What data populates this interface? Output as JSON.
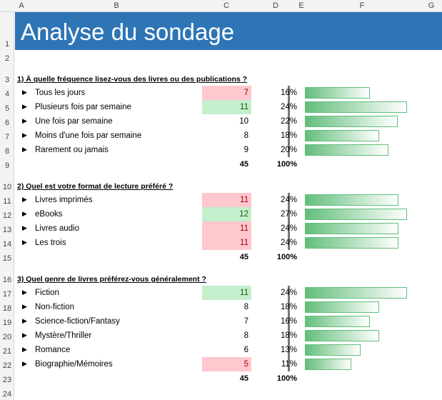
{
  "columns": [
    "A",
    "B",
    "C",
    "D",
    "E",
    "F",
    "G"
  ],
  "title": "Analyse du sondage",
  "colors": {
    "title_bg": "#2e75b6",
    "low_bg": "#ffc7ce",
    "high_bg": "#c6efce",
    "bar": "#63be7b"
  },
  "sections": [
    {
      "question": "1) À quelle fréquence lisez-vous des livres ou des publications ?",
      "items": [
        {
          "label": "Tous les jours",
          "count": "7",
          "pct": "16%",
          "value": 7,
          "hl": "low"
        },
        {
          "label": "Plusieurs fois par semaine",
          "count": "11",
          "pct": "24%",
          "value": 11,
          "hl": "high"
        },
        {
          "label": "Une fois par semaine",
          "count": "10",
          "pct": "22%",
          "value": 10,
          "hl": ""
        },
        {
          "label": "Moins d'une fois par semaine",
          "count": "8",
          "pct": "18%",
          "value": 8,
          "hl": ""
        },
        {
          "label": "Rarement ou jamais",
          "count": "9",
          "pct": "20%",
          "value": 9,
          "hl": ""
        }
      ],
      "total": "45",
      "total_pct": "100%"
    },
    {
      "question": "2) Quel est votre format de lecture préféré ?",
      "items": [
        {
          "label": "Livres imprimés",
          "count": "11",
          "pct": "24%",
          "value": 11,
          "hl": "low"
        },
        {
          "label": "eBooks",
          "count": "12",
          "pct": "27%",
          "value": 12,
          "hl": "high"
        },
        {
          "label": "Livres audio",
          "count": "11",
          "pct": "24%",
          "value": 11,
          "hl": "low"
        },
        {
          "label": "Les trois",
          "count": "11",
          "pct": "24%",
          "value": 11,
          "hl": "low"
        }
      ],
      "total": "45",
      "total_pct": "100%"
    },
    {
      "question": "3) Quel genre de livres préférez-vous généralement ?",
      "items": [
        {
          "label": "Fiction",
          "count": "11",
          "pct": "24%",
          "value": 11,
          "hl": "high"
        },
        {
          "label": "Non-fiction",
          "count": "8",
          "pct": "18%",
          "value": 8,
          "hl": ""
        },
        {
          "label": "Science-fiction/Fantasy",
          "count": "7",
          "pct": "16%",
          "value": 7,
          "hl": ""
        },
        {
          "label": "Mystère/Thriller",
          "count": "8",
          "pct": "18%",
          "value": 8,
          "hl": ""
        },
        {
          "label": "Romance",
          "count": "6",
          "pct": "13%",
          "value": 6,
          "hl": ""
        },
        {
          "label": "Biographie/Mémoires",
          "count": "5",
          "pct": "11%",
          "value": 5,
          "hl": "low"
        }
      ],
      "total": "45",
      "total_pct": "100%"
    }
  ]
}
